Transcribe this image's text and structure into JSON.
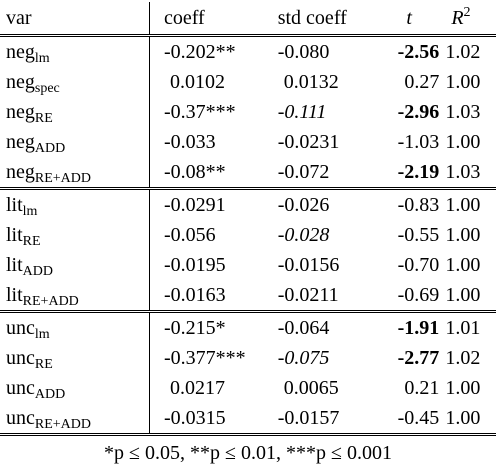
{
  "header": {
    "var": "var",
    "coeff": "coeff",
    "std_coeff": "std coeff",
    "t": "t",
    "r2_base": "R",
    "r2_sup": "2"
  },
  "groups": [
    {
      "rows": [
        {
          "base": "neg",
          "sub": "lm",
          "coeff": "-0.202**",
          "std": "-0.080",
          "t": "-2.56",
          "r2": "1.02"
        },
        {
          "base": "neg",
          "sub": "spec",
          "coeff": "0.0102",
          "std": "0.0132",
          "t": "0.27",
          "r2": "1.00"
        },
        {
          "base": "neg",
          "sub": "RE",
          "coeff": "-0.37***",
          "std": "-0.111",
          "t": "-2.96",
          "r2": "1.03"
        },
        {
          "base": "neg",
          "sub": "ADD",
          "coeff": "-0.033",
          "std": "-0.0231",
          "t": "-1.03",
          "r2": "1.00"
        },
        {
          "base": "neg",
          "sub": "RE+ADD",
          "coeff": "-0.08**",
          "std": "-0.072",
          "t": "-2.19",
          "r2": "1.03"
        }
      ]
    },
    {
      "rows": [
        {
          "base": "lit",
          "sub": "lm",
          "coeff": "-0.0291",
          "std": "-0.026",
          "t": "-0.83",
          "r2": "1.00"
        },
        {
          "base": "lit",
          "sub": "RE",
          "coeff": "-0.056",
          "std": "-0.028",
          "t": "-0.55",
          "r2": "1.00"
        },
        {
          "base": "lit",
          "sub": "ADD",
          "coeff": "-0.0195",
          "std": "-0.0156",
          "t": "-0.70",
          "r2": "1.00"
        },
        {
          "base": "lit",
          "sub": "RE+ADD",
          "coeff": "-0.0163",
          "std": "-0.0211",
          "t": "-0.69",
          "r2": "1.00"
        }
      ]
    },
    {
      "rows": [
        {
          "base": "unc",
          "sub": "lm",
          "coeff": "-0.215*",
          "std": "-0.064",
          "t": "-1.91",
          "r2": "1.01"
        },
        {
          "base": "unc",
          "sub": "RE",
          "coeff": "-0.377***",
          "std": "-0.075",
          "t": "-2.77",
          "r2": "1.02"
        },
        {
          "base": "unc",
          "sub": "ADD",
          "coeff": "0.0217",
          "std": "0.0065",
          "t": "0.21",
          "r2": "1.00"
        },
        {
          "base": "unc",
          "sub": "RE+ADD",
          "coeff": "-0.0315",
          "std": "-0.0157",
          "t": "-0.45",
          "r2": "1.00"
        }
      ]
    }
  ],
  "footnote": "*p ≤ 0.05, **p ≤ 0.01, ***p ≤ 0.001"
}
